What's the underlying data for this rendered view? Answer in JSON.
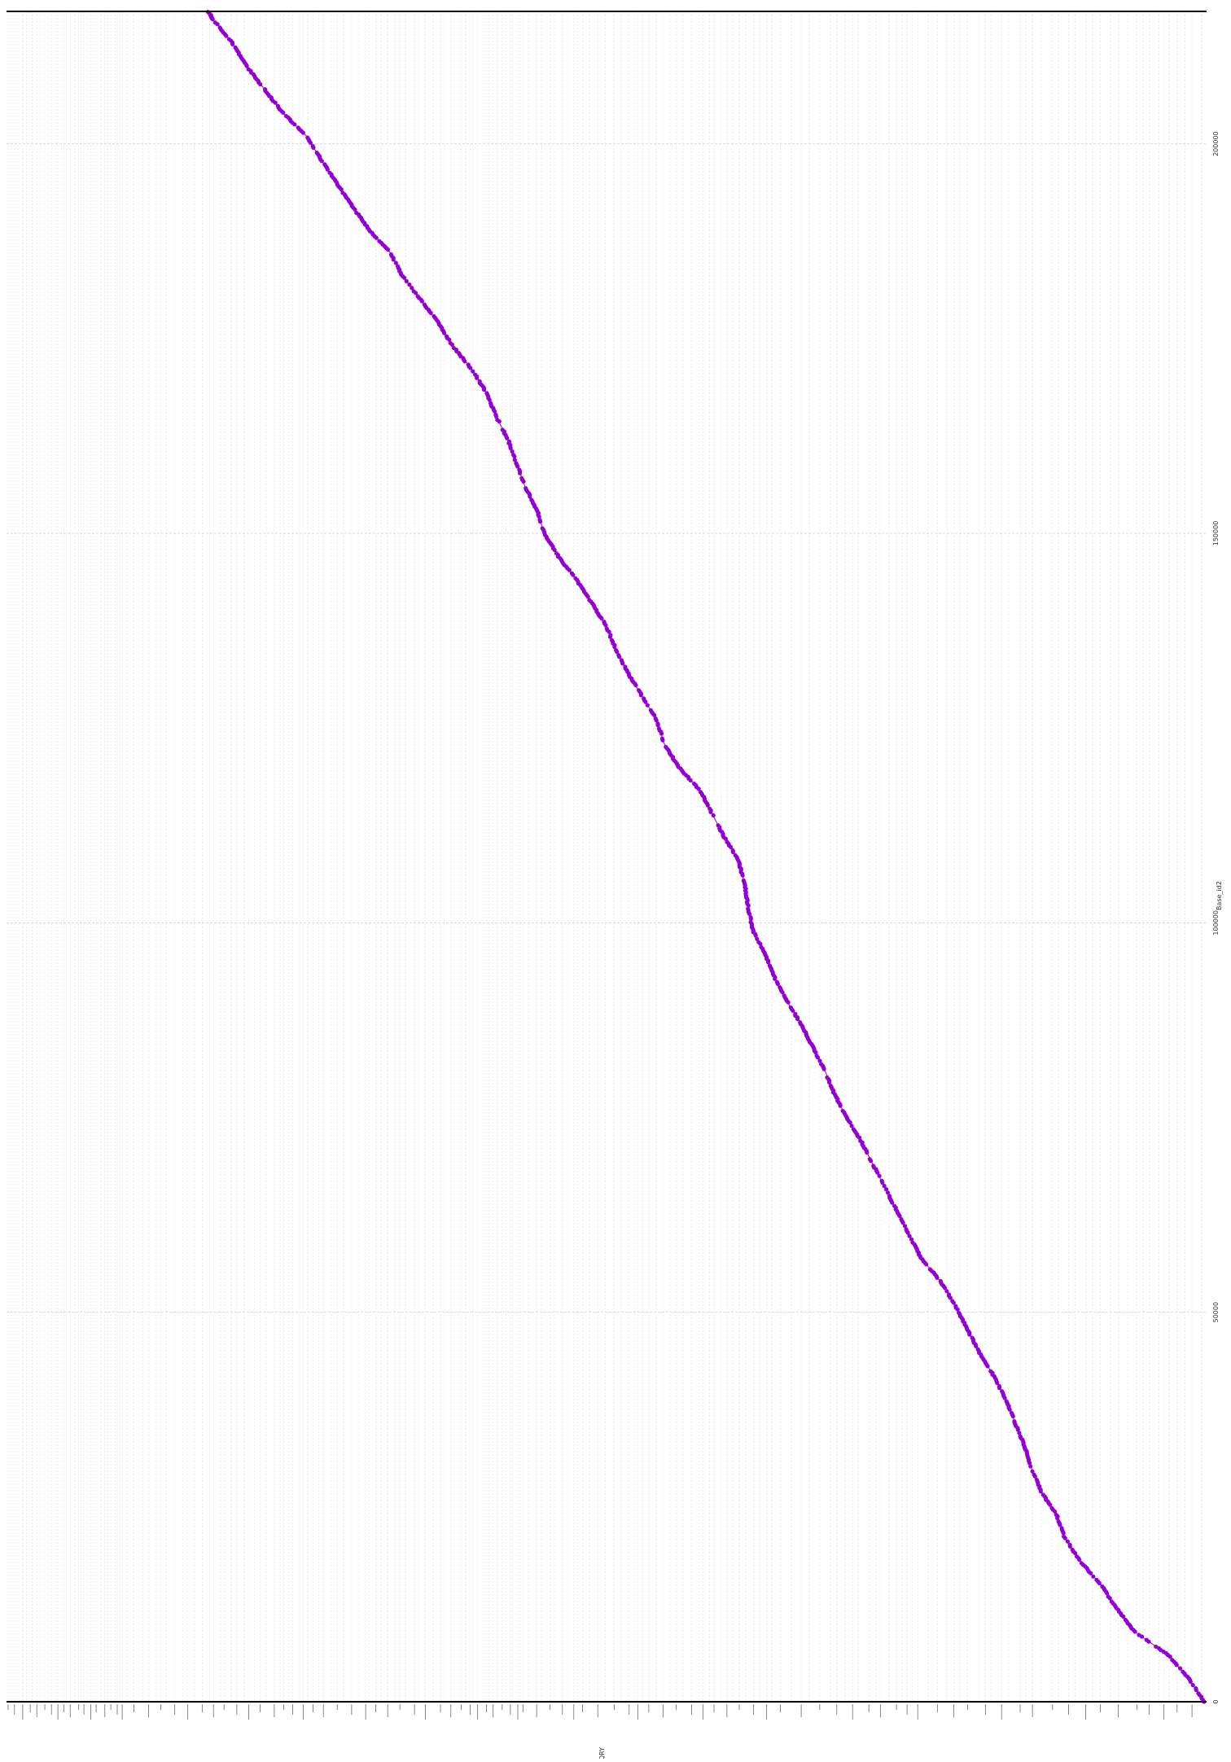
{
  "chart_data": {
    "type": "scatter",
    "orientation": "rotated-90",
    "title": "",
    "xlabel": "Base_id2",
    "ylabel": "QRY",
    "xlim": [
      0,
      217000
    ],
    "x_ticks": [
      0,
      50000,
      100000,
      150000,
      200000
    ],
    "grid": true,
    "legend": "none",
    "colors": {
      "points": "#9400d3",
      "grid_major": "#d0d0d0",
      "grid_minor": "#e2e2e2",
      "axis": "#000000"
    },
    "series": [
      {
        "color": "#9400d3",
        "trend": [
          [
            0,
            0.002
          ],
          [
            3000,
            0.015
          ],
          [
            6000,
            0.032
          ],
          [
            9000,
            0.06
          ],
          [
            12000,
            0.075
          ],
          [
            15000,
            0.088
          ],
          [
            18000,
            0.105
          ],
          [
            21000,
            0.118
          ],
          [
            24000,
            0.125
          ],
          [
            27000,
            0.138
          ],
          [
            30000,
            0.146
          ],
          [
            33000,
            0.152
          ],
          [
            36000,
            0.16
          ],
          [
            39000,
            0.168
          ],
          [
            42000,
            0.178
          ],
          [
            45000,
            0.19
          ],
          [
            48000,
            0.2
          ],
          [
            51000,
            0.21
          ],
          [
            54000,
            0.222
          ],
          [
            57000,
            0.238
          ],
          [
            60000,
            0.248
          ],
          [
            63000,
            0.258
          ],
          [
            66000,
            0.268
          ],
          [
            69000,
            0.278
          ],
          [
            72000,
            0.288
          ],
          [
            75000,
            0.3
          ],
          [
            78000,
            0.31
          ],
          [
            81000,
            0.318
          ],
          [
            84000,
            0.328
          ],
          [
            87000,
            0.338
          ],
          [
            90000,
            0.35
          ],
          [
            93000,
            0.36
          ],
          [
            96000,
            0.368
          ],
          [
            99000,
            0.378
          ],
          [
            102000,
            0.382
          ],
          [
            105000,
            0.385
          ],
          [
            108000,
            0.39
          ],
          [
            111000,
            0.402
          ],
          [
            114000,
            0.412
          ],
          [
            117000,
            0.422
          ],
          [
            120000,
            0.44
          ],
          [
            123000,
            0.452
          ],
          [
            126000,
            0.458
          ],
          [
            129000,
            0.47
          ],
          [
            132000,
            0.482
          ],
          [
            135000,
            0.492
          ],
          [
            138000,
            0.5
          ],
          [
            141000,
            0.512
          ],
          [
            144000,
            0.525
          ],
          [
            147000,
            0.54
          ],
          [
            150000,
            0.552
          ],
          [
            153000,
            0.558
          ],
          [
            156000,
            0.568
          ],
          [
            159000,
            0.575
          ],
          [
            162000,
            0.582
          ],
          [
            165000,
            0.592
          ],
          [
            168000,
            0.6
          ],
          [
            171000,
            0.612
          ],
          [
            174000,
            0.628
          ],
          [
            177000,
            0.64
          ],
          [
            180000,
            0.655
          ],
          [
            183000,
            0.67
          ],
          [
            186000,
            0.68
          ],
          [
            189000,
            0.698
          ],
          [
            192000,
            0.712
          ],
          [
            195000,
            0.725
          ],
          [
            198000,
            0.738
          ],
          [
            201000,
            0.75
          ],
          [
            204000,
            0.77
          ],
          [
            207000,
            0.785
          ],
          [
            210000,
            0.8
          ],
          [
            213000,
            0.812
          ],
          [
            216000,
            0.828
          ],
          [
            217000,
            0.832
          ]
        ]
      }
    ]
  }
}
